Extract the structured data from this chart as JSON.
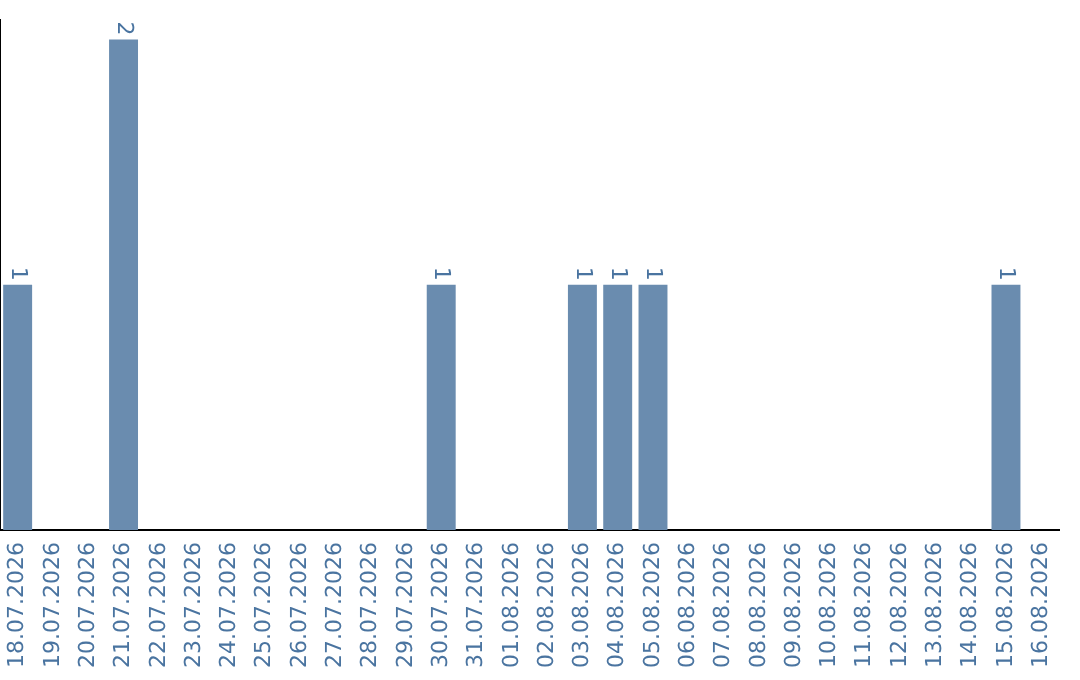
{
  "chart_data": {
    "type": "bar",
    "categories": [
      "18.07.2026",
      "19.07.2026",
      "20.07.2026",
      "21.07.2026",
      "22.07.2026",
      "23.07.2026",
      "24.07.2026",
      "25.07.2026",
      "26.07.2026",
      "27.07.2026",
      "28.07.2026",
      "29.07.2026",
      "30.07.2026",
      "31.07.2026",
      "01.08.2026",
      "02.08.2026",
      "03.08.2026",
      "04.08.2026",
      "05.08.2026",
      "06.08.2026",
      "07.08.2026",
      "08.08.2026",
      "09.08.2026",
      "10.08.2026",
      "11.08.2026",
      "12.08.2026",
      "13.08.2026",
      "14.08.2026",
      "15.08.2026",
      "16.08.2026"
    ],
    "values": [
      1,
      0,
      0,
      2,
      0,
      0,
      0,
      0,
      0,
      0,
      0,
      0,
      1,
      0,
      0,
      0,
      1,
      1,
      1,
      0,
      0,
      0,
      0,
      0,
      0,
      0,
      0,
      0,
      1,
      0
    ],
    "value_labels": [
      "1",
      null,
      null,
      "2",
      null,
      null,
      null,
      null,
      null,
      null,
      null,
      null,
      "1",
      null,
      null,
      null,
      "1",
      "1",
      "1",
      null,
      null,
      null,
      null,
      null,
      null,
      null,
      null,
      null,
      "1",
      null
    ],
    "color": "#6a8caf",
    "ylim": [
      0,
      2.08
    ],
    "grid": false,
    "legend": false
  }
}
